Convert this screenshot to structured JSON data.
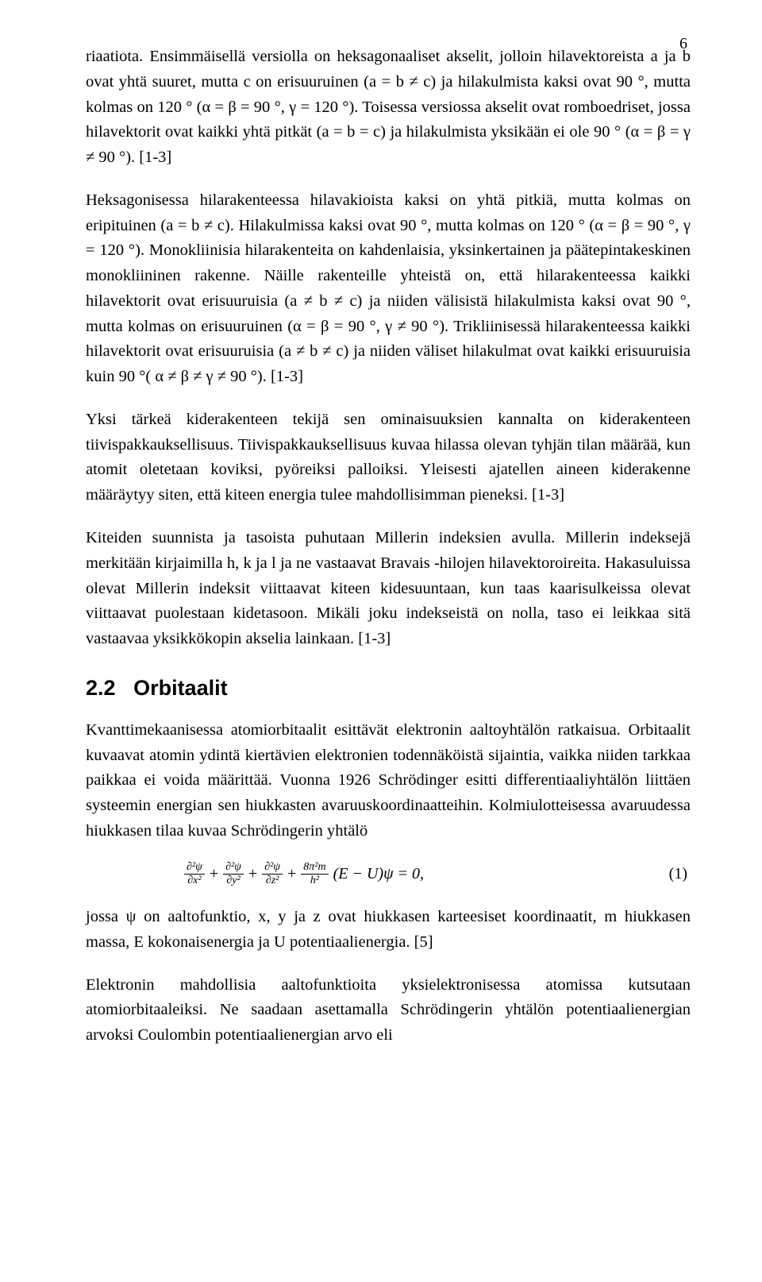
{
  "meta": {
    "page_number": "6",
    "text_color": "#000000",
    "background_color": "#ffffff",
    "body_font_family": "Times New Roman",
    "body_font_size_pt": 12,
    "heading_font_family": "Arial",
    "heading_font_size_pt": 16,
    "heading_font_weight": "bold",
    "line_spacing": 1.55
  },
  "paragraphs": {
    "p1": "riaatiota. Ensimmäisellä versiolla on heksagonaaliset akselit, jolloin hilavektoreista a ja b ovat yhtä suuret, mutta c on erisuuruinen (a = b ≠ c) ja hilakulmista kaksi ovat 90 °, mutta kolmas on 120 ° (α = β = 90 °, γ = 120 °). Toisessa versiossa akselit ovat romboedriset, jossa hilavektorit ovat kaikki yhtä pitkät (a = b = c) ja hilakulmista yksikään ei ole 90 ° (α = β = γ ≠ 90 °). [1-3]",
    "p2": "Heksagonisessa hilarakenteessa hilavakioista kaksi on yhtä pitkiä, mutta kolmas on eripituinen (a = b ≠ c). Hilakulmissa kaksi ovat 90 °, mutta kolmas on 120 ° (α = β = 90 °, γ = 120 °). Monokliinisia hilarakenteita on kahdenlaisia, yksinkertainen ja päätepintakeskinen monokliininen rakenne. Näille rakenteille yhteistä on, että hilarakenteessa kaikki hilavektorit ovat erisuuruisia (a ≠ b ≠ c) ja niiden välisistä hilakulmista kaksi ovat 90 °, mutta kolmas on erisuuruinen (α = β = 90 °, γ ≠ 90 °). Trikliinisessä hilarakenteessa kaikki hilavektorit ovat erisuuruisia (a ≠ b ≠ c) ja niiden väliset hilakulmat ovat kaikki erisuuruisia kuin 90 °( α ≠ β ≠ γ ≠ 90 °). [1-3]",
    "p3": "Yksi tärkeä kiderakenteen tekijä sen ominaisuuksien kannalta on kiderakenteen tiivispakkauksellisuus. Tiivispakkauksellisuus kuvaa hilassa olevan tyhjän tilan määrää, kun atomit oletetaan koviksi, pyöreiksi palloiksi. Yleisesti ajatellen aineen kiderakenne määräytyy siten, että kiteen energia tulee mahdollisimman pieneksi. [1-3]",
    "p4": "Kiteiden suunnista ja tasoista puhutaan Millerin indeksien avulla. Millerin indeksejä merkitään kirjaimilla h, k ja l ja ne vastaavat Bravais -hilojen hilavektoroireita. Hakasuluissa olevat Millerin indeksit viittaavat kiteen kidesuuntaan, kun taas kaarisulkeissa olevat viittaavat puolestaan kidetasoon. Mikäli joku indekseistä on nolla, taso ei leikkaa sitä vastaavaa yksikkökopin akselia lainkaan. [1-3]",
    "p5": "Kvanttimekaanisessa atomiorbitaalit esittävät elektronin aaltoyhtälön ratkaisua. Orbitaalit kuvaavat atomin ydintä kiertävien elektronien todennäköistä sijaintia, vaikka niiden tarkkaa paikkaa ei voida määrittää. Vuonna 1926 Schrödinger esitti differentiaaliyhtälön liittäen systeemin energian sen hiukkasten avaruuskoordinaatteihin. Kolmiulotteisessa avaruudessa hiukkasen tilaa kuvaa Schrödingerin yhtälö",
    "p6": "jossa ψ on aaltofunktio, x, y ja z ovat hiukkasen karteesiset koordinaatit, m hiukkasen massa, E kokonaisenergia ja U potentiaalienergia. [5]",
    "p7": "Elektronin mahdollisia aaltofunktioita yksielektronisessa atomissa kutsutaan atomiorbitaaleiksi. Ne saadaan asettamalla Schrödingerin yhtälön potentiaalienergian arvoksi Coulombin potentiaalienergian arvo eli"
  },
  "heading": {
    "number": "2.2",
    "title": "Orbitaalit"
  },
  "equation": {
    "number_label": "(1)",
    "terms": {
      "t1_num": "∂²ψ",
      "t1_den": "∂x²",
      "t2_num": "∂²ψ",
      "t2_den": "∂y²",
      "t3_num": "∂²ψ",
      "t3_den": "∂z²",
      "t4_num": "8π²m",
      "t4_den": "h²",
      "tail": "(E − U)ψ = 0,"
    },
    "plus": "+"
  }
}
